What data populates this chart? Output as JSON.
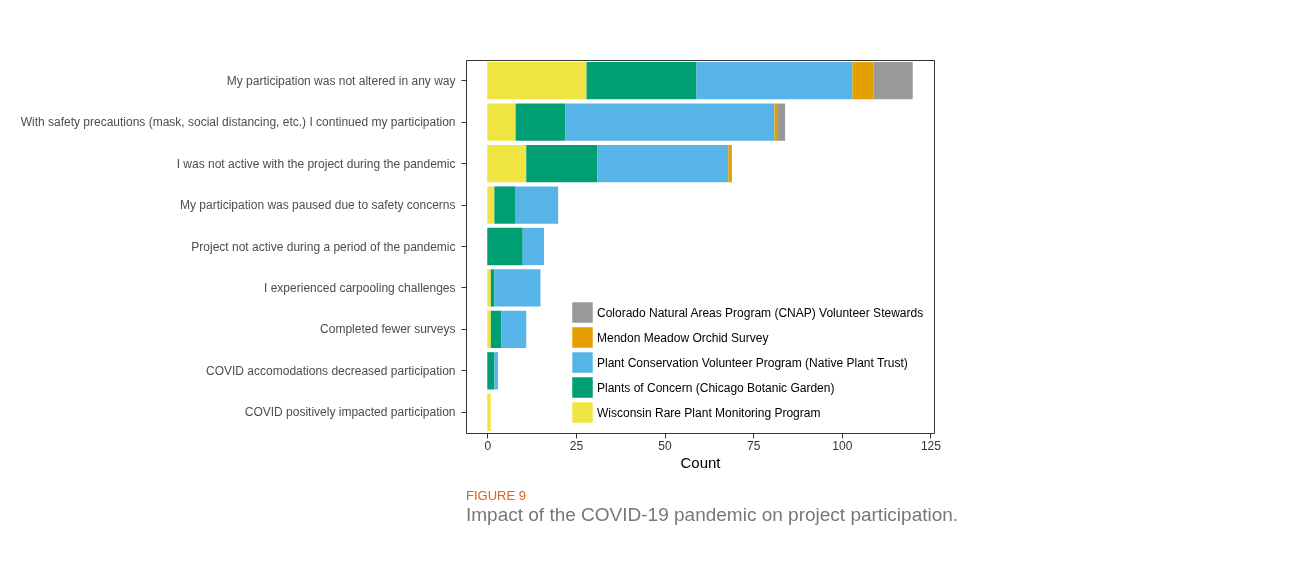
{
  "chart_data": {
    "type": "bar",
    "orientation": "horizontal",
    "stacked": true,
    "title": "FIGURE 9",
    "subtitle": "Impact of the COVID-19 pandemic on project participation.",
    "xlabel": "Count",
    "categories": [
      "My participation was not altered in any way",
      "With safety precautions (mask, social distancing, etc.) I continued my participation",
      "I was not active with the project during the pandemic",
      "My participation was paused due to safety concerns",
      "Project not active during a period of the pandemic",
      "I experienced carpooling challenges",
      "Completed fewer surveys",
      "COVID accomodations decreased participation",
      "COVID positively impacted participation"
    ],
    "series": [
      {
        "name": "Wisconsin Rare Plant Monitoring Program",
        "color": "#f0e442",
        "values": [
          28,
          8,
          11,
          2,
          0,
          1,
          1,
          0,
          1
        ]
      },
      {
        "name": "Plants of Concern (Chicago Botanic Garden)",
        "color": "#009e73",
        "values": [
          31,
          14,
          20,
          6,
          10,
          1,
          3,
          2,
          0
        ]
      },
      {
        "name": "Plant Conservation Volunteer Program (Native Plant Trust)",
        "color": "#56b4e9",
        "values": [
          44,
          59,
          37,
          12,
          6,
          13,
          7,
          1,
          0
        ]
      },
      {
        "name": "Mendon Meadow Orchid Survey",
        "color": "#e69f00",
        "values": [
          6,
          1,
          1,
          0,
          0,
          0,
          0,
          0,
          0
        ]
      },
      {
        "name": "Colorado Natural Areas Program (CNAP) Volunteer Stewards",
        "color": "#999999",
        "values": [
          11,
          2,
          0,
          0,
          0,
          0,
          0,
          0,
          0
        ]
      }
    ],
    "xlim": [
      -6,
      126
    ],
    "xticks": [
      0,
      25,
      50,
      75,
      100,
      125
    ],
    "grid": false,
    "legend": "bottom right"
  }
}
